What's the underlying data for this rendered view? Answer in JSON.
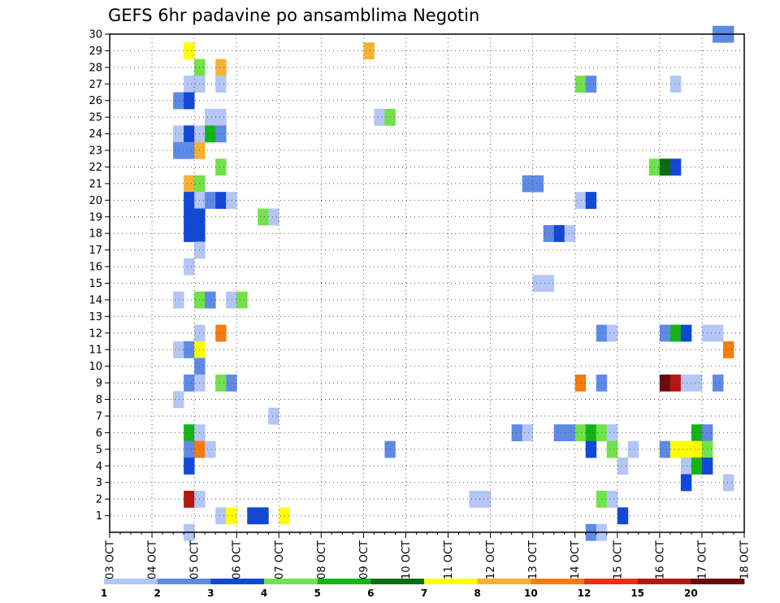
{
  "chart_data": {
    "type": "heatmap",
    "title": "GEFS 6hr padavine po ansamblima Negotin",
    "x_tick_labels": [
      "03 OCT",
      "04 OCT",
      "05 OCT",
      "06 OCT",
      "07 OCT",
      "08 OCT",
      "09 OCT",
      "10 OCT",
      "11 OCT",
      "12 OCT",
      "13 OCT",
      "14 OCT",
      "15 OCT",
      "16 OCT",
      "17 OCT",
      "18 OCT"
    ],
    "y_tick_labels": [
      "1",
      "2",
      "3",
      "4",
      "5",
      "6",
      "7",
      "8",
      "9",
      "10",
      "11",
      "12",
      "13",
      "14",
      "15",
      "16",
      "17",
      "18",
      "19",
      "20",
      "21",
      "22",
      "23",
      "24",
      "25",
      "26",
      "27",
      "28",
      "29",
      "30"
    ],
    "ylim": [
      0,
      30
    ],
    "grid": true,
    "colorbar": {
      "labels": [
        "1",
        "2",
        "3",
        "4",
        "5",
        "6",
        "7",
        "8",
        "10",
        "12",
        "15",
        "20"
      ],
      "colors": [
        "#b3c6f5",
        "#5e8ae6",
        "#1248d6",
        "#70e24a",
        "#13b417",
        "#0b6e10",
        "#ffff00",
        "#f7b130",
        "#f77a0d",
        "#e8300c",
        "#b3170d",
        "#6b0a0a"
      ]
    },
    "cells": [
      {
        "member": 30,
        "step": 58,
        "value": 2
      },
      {
        "member": 30,
        "step": 59,
        "value": 2
      },
      {
        "member": 29,
        "step": 8,
        "value": 7
      },
      {
        "member": 29,
        "step": 25,
        "value": 8
      },
      {
        "member": 28,
        "step": 9,
        "value": 4
      },
      {
        "member": 28,
        "step": 11,
        "value": 8
      },
      {
        "member": 27,
        "step": 8,
        "value": 1
      },
      {
        "member": 27,
        "step": 9,
        "value": 1
      },
      {
        "member": 27,
        "step": 11,
        "value": 1
      },
      {
        "member": 27,
        "step": 45,
        "value": 4
      },
      {
        "member": 27,
        "step": 46,
        "value": 2
      },
      {
        "member": 27,
        "step": 54,
        "value": 1
      },
      {
        "member": 26,
        "step": 7,
        "value": 2
      },
      {
        "member": 26,
        "step": 8,
        "value": 3
      },
      {
        "member": 25,
        "step": 10,
        "value": 1
      },
      {
        "member": 25,
        "step": 11,
        "value": 1
      },
      {
        "member": 25,
        "step": 26,
        "value": 1
      },
      {
        "member": 25,
        "step": 27,
        "value": 4
      },
      {
        "member": 24,
        "step": 7,
        "value": 1
      },
      {
        "member": 24,
        "step": 8,
        "value": 3
      },
      {
        "member": 24,
        "step": 9,
        "value": 1
      },
      {
        "member": 24,
        "step": 10,
        "value": 5
      },
      {
        "member": 24,
        "step": 11,
        "value": 2
      },
      {
        "member": 23,
        "step": 7,
        "value": 2
      },
      {
        "member": 23,
        "step": 8,
        "value": 2
      },
      {
        "member": 23,
        "step": 9,
        "value": 8
      },
      {
        "member": 22,
        "step": 11,
        "value": 4
      },
      {
        "member": 22,
        "step": 52,
        "value": 4
      },
      {
        "member": 22,
        "step": 53,
        "value": 6
      },
      {
        "member": 22,
        "step": 54,
        "value": 3
      },
      {
        "member": 21,
        "step": 8,
        "value": 8
      },
      {
        "member": 21,
        "step": 9,
        "value": 4
      },
      {
        "member": 21,
        "step": 40,
        "value": 2
      },
      {
        "member": 21,
        "step": 41,
        "value": 2
      },
      {
        "member": 20,
        "step": 8,
        "value": 3
      },
      {
        "member": 20,
        "step": 9,
        "value": 1
      },
      {
        "member": 20,
        "step": 10,
        "value": 2
      },
      {
        "member": 20,
        "step": 11,
        "value": 3
      },
      {
        "member": 20,
        "step": 12,
        "value": 1
      },
      {
        "member": 20,
        "step": 45,
        "value": 1
      },
      {
        "member": 20,
        "step": 46,
        "value": 3
      },
      {
        "member": 19,
        "step": 8,
        "value": 3
      },
      {
        "member": 19,
        "step": 9,
        "value": 3
      },
      {
        "member": 19,
        "step": 15,
        "value": 4
      },
      {
        "member": 19,
        "step": 16,
        "value": 1
      },
      {
        "member": 18,
        "step": 8,
        "value": 3
      },
      {
        "member": 18,
        "step": 9,
        "value": 3
      },
      {
        "member": 18,
        "step": 42,
        "value": 2
      },
      {
        "member": 18,
        "step": 43,
        "value": 3
      },
      {
        "member": 18,
        "step": 44,
        "value": 1
      },
      {
        "member": 17,
        "step": 9,
        "value": 1
      },
      {
        "member": 16,
        "step": 8,
        "value": 1
      },
      {
        "member": 15,
        "step": 41,
        "value": 1
      },
      {
        "member": 15,
        "step": 42,
        "value": 1
      },
      {
        "member": 14,
        "step": 7,
        "value": 1
      },
      {
        "member": 14,
        "step": 9,
        "value": 4
      },
      {
        "member": 14,
        "step": 10,
        "value": 2
      },
      {
        "member": 14,
        "step": 12,
        "value": 1
      },
      {
        "member": 14,
        "step": 13,
        "value": 4
      },
      {
        "member": 12,
        "step": 9,
        "value": 1
      },
      {
        "member": 12,
        "step": 11,
        "value": 10
      },
      {
        "member": 12,
        "step": 47,
        "value": 2
      },
      {
        "member": 12,
        "step": 48,
        "value": 1
      },
      {
        "member": 12,
        "step": 53,
        "value": 2
      },
      {
        "member": 12,
        "step": 54,
        "value": 5
      },
      {
        "member": 12,
        "step": 55,
        "value": 3
      },
      {
        "member": 12,
        "step": 57,
        "value": 1
      },
      {
        "member": 12,
        "step": 58,
        "value": 1
      },
      {
        "member": 11,
        "step": 7,
        "value": 1
      },
      {
        "member": 11,
        "step": 8,
        "value": 2
      },
      {
        "member": 11,
        "step": 9,
        "value": 7
      },
      {
        "member": 11,
        "step": 59,
        "value": 10
      },
      {
        "member": 10,
        "step": 9,
        "value": 2
      },
      {
        "member": 9,
        "step": 8,
        "value": 2
      },
      {
        "member": 9,
        "step": 9,
        "value": 1
      },
      {
        "member": 9,
        "step": 11,
        "value": 4
      },
      {
        "member": 9,
        "step": 12,
        "value": 2
      },
      {
        "member": 9,
        "step": 45,
        "value": 10
      },
      {
        "member": 9,
        "step": 47,
        "value": 2
      },
      {
        "member": 9,
        "step": 53,
        "value": 20
      },
      {
        "member": 9,
        "step": 54,
        "value": 15
      },
      {
        "member": 9,
        "step": 55,
        "value": 1
      },
      {
        "member": 9,
        "step": 56,
        "value": 1
      },
      {
        "member": 9,
        "step": 58,
        "value": 2
      },
      {
        "member": 8,
        "step": 7,
        "value": 1
      },
      {
        "member": 7,
        "step": 16,
        "value": 1
      },
      {
        "member": 6,
        "step": 8,
        "value": 5
      },
      {
        "member": 6,
        "step": 9,
        "value": 1
      },
      {
        "member": 6,
        "step": 39,
        "value": 2
      },
      {
        "member": 6,
        "step": 40,
        "value": 1
      },
      {
        "member": 6,
        "step": 43,
        "value": 2
      },
      {
        "member": 6,
        "step": 44,
        "value": 2
      },
      {
        "member": 6,
        "step": 45,
        "value": 4
      },
      {
        "member": 6,
        "step": 46,
        "value": 5
      },
      {
        "member": 6,
        "step": 47,
        "value": 4
      },
      {
        "member": 6,
        "step": 48,
        "value": 1
      },
      {
        "member": 6,
        "step": 56,
        "value": 5
      },
      {
        "member": 6,
        "step": 57,
        "value": 2
      },
      {
        "member": 5,
        "step": 8,
        "value": 2
      },
      {
        "member": 5,
        "step": 9,
        "value": 10
      },
      {
        "member": 5,
        "step": 10,
        "value": 1
      },
      {
        "member": 5,
        "step": 27,
        "value": 2
      },
      {
        "member": 5,
        "step": 46,
        "value": 3
      },
      {
        "member": 5,
        "step": 48,
        "value": 4
      },
      {
        "member": 5,
        "step": 50,
        "value": 1
      },
      {
        "member": 5,
        "step": 53,
        "value": 2
      },
      {
        "member": 5,
        "step": 54,
        "value": 7
      },
      {
        "member": 5,
        "step": 55,
        "value": 7
      },
      {
        "member": 5,
        "step": 56,
        "value": 7
      },
      {
        "member": 5,
        "step": 57,
        "value": 4
      },
      {
        "member": 4,
        "step": 8,
        "value": 3
      },
      {
        "member": 4,
        "step": 49,
        "value": 1
      },
      {
        "member": 4,
        "step": 55,
        "value": 1
      },
      {
        "member": 4,
        "step": 56,
        "value": 5
      },
      {
        "member": 4,
        "step": 57,
        "value": 3
      },
      {
        "member": 3,
        "step": 55,
        "value": 3
      },
      {
        "member": 3,
        "step": 59,
        "value": 1
      },
      {
        "member": 2,
        "step": 8,
        "value": 15
      },
      {
        "member": 2,
        "step": 9,
        "value": 1
      },
      {
        "member": 2,
        "step": 35,
        "value": 1
      },
      {
        "member": 2,
        "step": 36,
        "value": 1
      },
      {
        "member": 2,
        "step": 47,
        "value": 4
      },
      {
        "member": 2,
        "step": 48,
        "value": 1
      },
      {
        "member": 1,
        "step": 11,
        "value": 1
      },
      {
        "member": 1,
        "step": 12,
        "value": 7
      },
      {
        "member": 1,
        "step": 14,
        "value": 3
      },
      {
        "member": 1,
        "step": 15,
        "value": 3
      },
      {
        "member": 1,
        "step": 17,
        "value": 7
      },
      {
        "member": 1,
        "step": 49,
        "value": 3
      },
      {
        "member": 0,
        "step": 8,
        "value": 1
      },
      {
        "member": 0,
        "step": 46,
        "value": 2
      },
      {
        "member": 0,
        "step": 47,
        "value": 1
      }
    ]
  }
}
